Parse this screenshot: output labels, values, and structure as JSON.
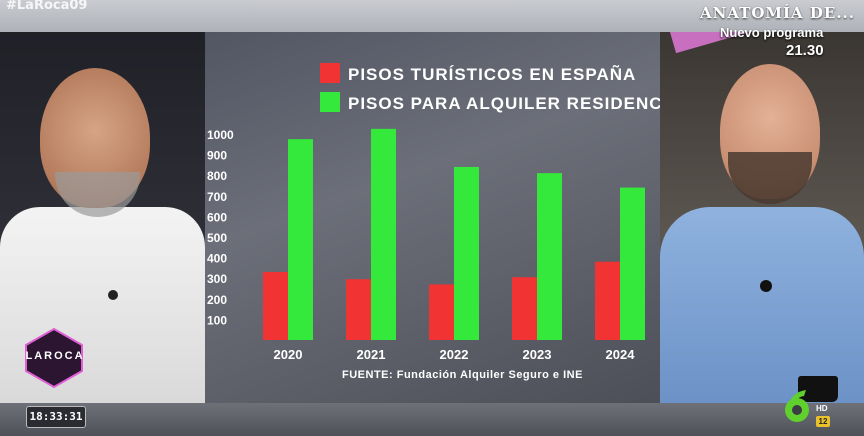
{
  "top": {
    "hashtag": "#LaRoca09",
    "show_title": "ANATOMÍA DE...",
    "next_show_label": "Nuevo programa",
    "next_show_time": "21.30"
  },
  "bottom": {
    "clock": "18:33:31",
    "show_logo": "LAROCA",
    "channel_hd": "HD",
    "age_rating": "12"
  },
  "colors": {
    "series_1": "#f23334",
    "series_2": "#35e83c"
  },
  "chart_data": {
    "type": "bar",
    "categories": [
      "2020",
      "2021",
      "2022",
      "2023",
      "2024"
    ],
    "series": [
      {
        "name": "PISOS TURÍSTICOS EN ESPAÑA",
        "values": [
          330,
          295,
          270,
          305,
          380
        ]
      },
      {
        "name": "PISOS PARA ALQUILER RESIDENCIA",
        "values": [
          975,
          1025,
          840,
          810,
          740
        ]
      }
    ],
    "y_ticks": [
      100,
      200,
      300,
      400,
      500,
      600,
      700,
      800,
      900,
      1000
    ],
    "ylim": [
      0,
      1000
    ],
    "legend_position": "top",
    "grid": false,
    "source": "FUENTE: Fundación Alquiler Seguro e INE"
  }
}
